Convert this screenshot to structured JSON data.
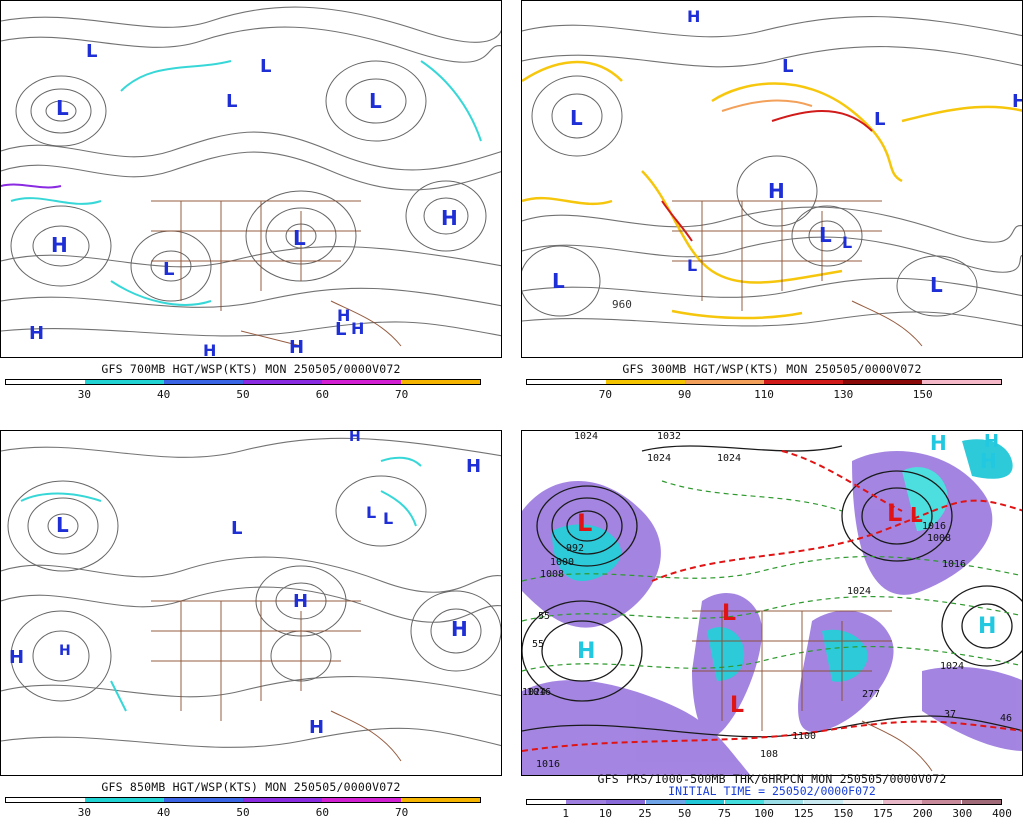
{
  "panels": [
    {
      "id": "p700",
      "caption": "GFS 700MB HGT/WSP(KTS) MON 250505/0000V072",
      "caption2": "",
      "colorbar": {
        "segments": [
          "#ffffff",
          "#22d3d3",
          "#3a66e6",
          "#8a2be2",
          "#d21fd2",
          "#f5b400"
        ],
        "labels": [
          "30",
          "40",
          "50",
          "60",
          "70"
        ]
      },
      "symbols": [
        {
          "t": "L",
          "c": "#1f2fd6"
        },
        {
          "t": "L",
          "c": "#1f2fd6"
        },
        {
          "t": "L",
          "c": "#1f2fd6"
        },
        {
          "t": "L",
          "c": "#1f2fd6"
        },
        {
          "t": "L",
          "c": "#1f2fd6"
        },
        {
          "t": "L",
          "c": "#1f2fd6"
        },
        {
          "t": "H",
          "c": "#1f2fd6"
        },
        {
          "t": "H",
          "c": "#1f2fd6"
        },
        {
          "t": "L",
          "c": "#1f2fd6"
        },
        {
          "t": "H",
          "c": "#1f2fd6"
        },
        {
          "t": "H",
          "c": "#1f2fd6"
        },
        {
          "t": "H",
          "c": "#1f2fd6"
        },
        {
          "t": "H",
          "c": "#1f2fd6"
        },
        {
          "t": "L",
          "c": "#1f2fd6"
        },
        {
          "t": "H",
          "c": "#1f2fd6"
        }
      ]
    },
    {
      "id": "p300",
      "caption": "GFS 300MB HGT/WSP(KTS) MON 250505/0000V072",
      "caption2": "",
      "colorbar": {
        "segments": [
          "#ffffff",
          "#f5c400",
          "#f2a05a",
          "#d11a1a",
          "#8a0a0a",
          "#f5b8c8"
        ],
        "labels": [
          "70",
          "90",
          "110",
          "130",
          "150"
        ]
      },
      "symbols": [
        {
          "t": "H",
          "c": "#1f2fd6"
        },
        {
          "t": "L",
          "c": "#1f2fd6"
        },
        {
          "t": "L",
          "c": "#1f2fd6"
        },
        {
          "t": "L",
          "c": "#1f2fd6"
        },
        {
          "t": "H",
          "c": "#1f2fd6"
        },
        {
          "t": "L",
          "c": "#1f2fd6"
        },
        {
          "t": "L",
          "c": "#1f2fd6"
        },
        {
          "t": "L",
          "c": "#1f2fd6"
        },
        {
          "t": "L",
          "c": "#1f2fd6"
        },
        {
          "t": "L",
          "c": "#1f2fd6"
        },
        {
          "t": "H",
          "c": "#1f2fd6"
        }
      ],
      "contour_label": "960"
    },
    {
      "id": "p850",
      "caption": "GFS 850MB HGT/WSP(KTS) MON 250505/0000V072",
      "caption2": "",
      "colorbar": {
        "segments": [
          "#ffffff",
          "#22d3d3",
          "#3a66e6",
          "#8a2be2",
          "#d21fd2",
          "#f5b400"
        ],
        "labels": [
          "30",
          "40",
          "50",
          "60",
          "70"
        ]
      },
      "symbols": [
        {
          "t": "H",
          "c": "#1f2fd6"
        },
        {
          "t": "H",
          "c": "#1f2fd6"
        },
        {
          "t": "L",
          "c": "#1f2fd6"
        },
        {
          "t": "L",
          "c": "#1f2fd6"
        },
        {
          "t": "L",
          "c": "#1f2fd6"
        },
        {
          "t": "L",
          "c": "#1f2fd6"
        },
        {
          "t": "H",
          "c": "#1f2fd6"
        },
        {
          "t": "H",
          "c": "#1f2fd6"
        },
        {
          "t": "H",
          "c": "#1f2fd6"
        },
        {
          "t": "H",
          "c": "#1f2fd6"
        },
        {
          "t": "H",
          "c": "#1f2fd6"
        }
      ]
    },
    {
      "id": "pprs",
      "caption": "GFS PRS/1000-500MB THK/6HRPCN MON 250505/0000V072",
      "caption2": "INITIAL TIME = 250502/0000F072",
      "colorbar": {
        "segments": [
          "#ffffff",
          "#9f7fe0",
          "#8a6ad8",
          "#6fa4e8",
          "#22c8d8",
          "#44dede",
          "#9adfe8",
          "#c9e9f0",
          "#f0f0f0",
          "#e8b8c8",
          "#c88a9a",
          "#a06a78"
        ],
        "labels": [
          "1",
          "10",
          "25",
          "50",
          "75",
          "100",
          "125",
          "150",
          "175",
          "200",
          "300",
          "400"
        ]
      },
      "symbols": [
        {
          "t": "L",
          "c": "#e01414"
        },
        {
          "t": "L",
          "c": "#e01414"
        },
        {
          "t": "L",
          "c": "#e01414"
        },
        {
          "t": "L",
          "c": "#e01414"
        },
        {
          "t": "L",
          "c": "#e01414"
        },
        {
          "t": "H",
          "c": "#22c8e0"
        },
        {
          "t": "H",
          "c": "#22c8e0"
        },
        {
          "t": "H",
          "c": "#22c8e0"
        },
        {
          "t": "H",
          "c": "#22c8e0"
        },
        {
          "t": "H",
          "c": "#22c8e0"
        }
      ],
      "isobar_labels": [
        "1024",
        "1032",
        "1024",
        "1024",
        "992",
        "1000",
        "1008",
        "1016",
        "1024",
        "1024",
        "1016",
        "1008",
        "1016",
        "1016",
        "1024"
      ],
      "precip_labels": [
        "55",
        "55",
        "277",
        "37",
        "46",
        "1100",
        "108"
      ]
    }
  ]
}
